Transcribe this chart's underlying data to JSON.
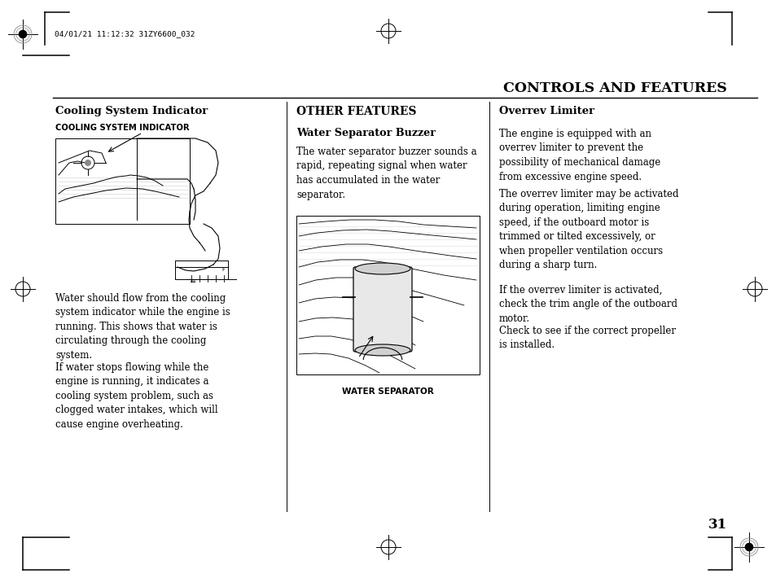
{
  "page_bg": "#ffffff",
  "header_timestamp": "04/01/21 11:12:32 31ZY6600_032",
  "page_title": "CONTROLS AND FEATURES",
  "page_number": "31",
  "col1_heading": "Cooling System Indicator",
  "col1_subheading": "COOLING SYSTEM INDICATOR",
  "col1_para1": "Water should flow from the cooling\nsystem indicator while the engine is\nrunning. This shows that water is\ncirculating through the cooling\nsystem.",
  "col1_para2": "If water stops flowing while the\nengine is running, it indicates a\ncooling system problem, such as\nclogged water intakes, which will\ncause engine overheating.",
  "col2_heading": "OTHER FEATURES",
  "col2_subheading": "Water Separator Buzzer",
  "col2_para1": "The water separator buzzer sounds a\nrapid, repeating signal when water\nhas accumulated in the water\nseparator.",
  "col2_caption": "WATER SEPARATOR",
  "col3_heading": "Overrev Limiter",
  "col3_para1": "The engine is equipped with an\noverrev limiter to prevent the\npossibility of mechanical damage\nfrom excessive engine speed.",
  "col3_para2": "The overrev limiter may be activated\nduring operation, limiting engine\nspeed, if the outboard motor is\ntrimmed or tilted excessively, or\nwhen propeller ventilation occurs\nduring a sharp turn.",
  "col3_para3": "If the overrev limiter is activated,\ncheck the trim angle of the outboard\nmotor.",
  "col3_para4": "Check to see if the correct propeller\nis installed."
}
